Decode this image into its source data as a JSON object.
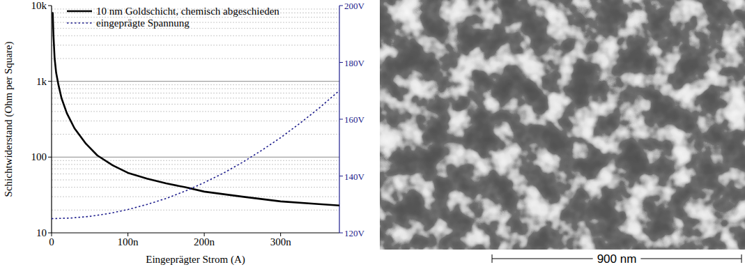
{
  "chart_data": {
    "type": "line",
    "xlabel": "Eingeprägter Strom (A)",
    "ylabel": "Schichtwiderstand (Ohm per Square)",
    "xlim": [
      0,
      3.77e-07
    ],
    "xticks": [
      0,
      {
        "value": 1e-07,
        "label": "100n"
      },
      {
        "value": 2e-07,
        "label": "200n"
      },
      {
        "value": 3e-07,
        "label": "300n"
      }
    ],
    "ylim": [
      10,
      10000
    ],
    "yticks": [
      10,
      100,
      {
        "value": 1000,
        "label": "1k"
      },
      {
        "value": 10000,
        "label": "10k"
      }
    ],
    "y2lim": [
      120,
      200
    ],
    "y2ticks": [
      {
        "value": 120,
        "label": "120V"
      },
      {
        "value": 140,
        "label": "140V"
      },
      {
        "value": 160,
        "label": "160V"
      },
      {
        "value": 180,
        "label": "180V"
      },
      {
        "value": 200,
        "label": "200V"
      }
    ],
    "log": "y",
    "grid": true,
    "legend": "upper left",
    "series": [
      {
        "name": "10 nm Goldschicht, chemisch abgeschieden",
        "color": "#000000",
        "line_style": "solid",
        "x": [
          1.5e-09,
          2.5e-09,
          4e-09,
          6e-09,
          9e-09,
          1.3e-08,
          2e-08,
          3e-08,
          4.5e-08,
          6e-08,
          8e-08,
          1e-07,
          1.25e-07,
          1.5e-07,
          1.75e-07,
          2e-07,
          2.5e-07,
          3e-07,
          3.5e-07,
          3.77e-07
        ],
        "values": [
          8000,
          4000,
          2000,
          1300,
          900,
          600,
          380,
          240,
          150,
          105,
          78,
          62,
          52,
          45,
          40,
          35,
          30,
          26,
          24,
          23
        ]
      },
      {
        "name": "eingeprägte Spannung",
        "color": "#1c1c8c",
        "line_style": "dotted",
        "axis": "y2",
        "x": [
          0,
          2.5e-08,
          5e-08,
          7.5e-08,
          1e-07,
          1.25e-07,
          1.5e-07,
          1.75e-07,
          2e-07,
          2.25e-07,
          2.5e-07,
          2.75e-07,
          3e-07,
          3.25e-07,
          3.5e-07,
          3.77e-07
        ],
        "values": [
          125,
          125.2,
          125.8,
          126.8,
          128.2,
          130,
          132.1,
          134.7,
          137.7,
          141,
          144.8,
          149,
          153.5,
          158.5,
          163.8,
          170.1
        ]
      }
    ]
  },
  "image": {
    "scale_bar": "900 nm"
  }
}
